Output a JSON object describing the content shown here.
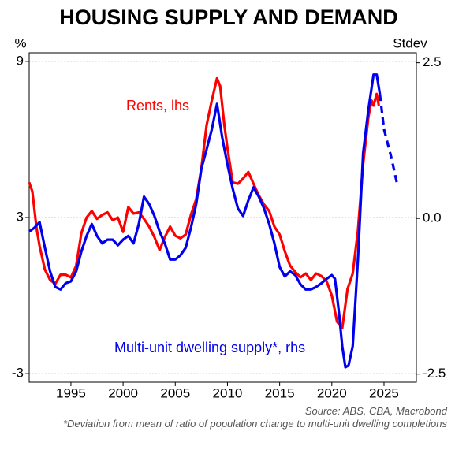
{
  "chart_data": {
    "type": "line",
    "title": "HOUSING SUPPLY AND DEMAND",
    "y_label": "%",
    "y2_label": "Stdev",
    "source": "Source: ABS, CBA, Macrobond",
    "footnote": "*Deviation from mean of ratio of population change to multi-unit dwelling completions",
    "xlim": [
      1991,
      2028.1
    ],
    "xticks": [
      1995,
      2000,
      2005,
      2010,
      2015,
      2020,
      2025
    ],
    "ylim": [
      -3.33,
      9.33
    ],
    "yticks": [
      9,
      3,
      -3
    ],
    "y2lim": [
      -2.63,
      2.66
    ],
    "y2ticks": [
      2.5,
      {
        "value": 0,
        "label": "0.0"
      },
      -2.5
    ],
    "grid": true,
    "annotations": [
      {
        "text": "Rents, lhs",
        "color": "#ff0000"
      },
      {
        "text": "Multi-unit dwelling supply*, rhs",
        "color": "#0000ee"
      }
    ],
    "series": [
      {
        "color": "#ff0000",
        "axis": "y",
        "dash": false,
        "x": [
          1991.0,
          1991.3,
          1991.7,
          1992.0,
          1992.5,
          1993.0,
          1993.5,
          1994.0,
          1994.5,
          1995.0,
          1995.5,
          1996.0,
          1996.5,
          1997.0,
          1997.5,
          1998.0,
          1998.5,
          1999.0,
          1999.5,
          2000.0,
          2000.5,
          2001.0,
          2001.5,
          2002.0,
          2002.5,
          2003.0,
          2003.5,
          2004.0,
          2004.5,
          2005.0,
          2005.5,
          2006.0,
          2006.5,
          2007.0,
          2007.5,
          2008.0,
          2008.5,
          2009.0,
          2009.3,
          2009.7,
          2010.0,
          2010.5,
          2011.0,
          2011.5,
          2012.0,
          2012.5,
          2013.0,
          2013.5,
          2014.0,
          2014.5,
          2015.0,
          2015.5,
          2016.0,
          2016.5,
          2017.0,
          2017.5,
          2018.0,
          2018.5,
          2019.0,
          2019.5,
          2020.0,
          2020.5,
          2021.0,
          2021.5,
          2022.0,
          2022.5,
          2023.0,
          2023.5,
          2023.8,
          2024.0,
          2024.3,
          2024.5
        ],
        "values": [
          4.35,
          4.0,
          2.6,
          1.9,
          1.0,
          0.6,
          0.45,
          0.8,
          0.8,
          0.7,
          1.15,
          2.4,
          3.0,
          3.25,
          2.95,
          3.1,
          3.2,
          2.9,
          3.0,
          2.45,
          3.4,
          3.15,
          3.2,
          2.95,
          2.65,
          2.25,
          1.75,
          2.25,
          2.65,
          2.3,
          2.2,
          2.35,
          3.1,
          3.7,
          4.9,
          6.55,
          7.5,
          8.35,
          8.05,
          6.55,
          5.65,
          4.35,
          4.3,
          4.5,
          4.75,
          4.3,
          3.85,
          3.5,
          3.25,
          2.65,
          2.35,
          1.7,
          1.15,
          0.9,
          0.7,
          0.85,
          0.6,
          0.85,
          0.75,
          0.55,
          0.0,
          -1.0,
          -1.25,
          0.25,
          0.85,
          2.5,
          5.05,
          6.85,
          7.5,
          7.3,
          7.75,
          7.3
        ]
      },
      {
        "color": "#0000ee",
        "axis": "y2",
        "dash": false,
        "x": [
          1991.0,
          1991.5,
          1992.0,
          1992.5,
          1993.0,
          1993.5,
          1994.0,
          1994.5,
          1995.0,
          1995.5,
          1996.0,
          1996.5,
          1997.0,
          1997.5,
          1998.0,
          1998.5,
          1999.0,
          1999.5,
          2000.0,
          2000.5,
          2001.0,
          2001.5,
          2002.0,
          2002.5,
          2003.0,
          2003.5,
          2004.0,
          2004.5,
          2005.0,
          2005.5,
          2006.0,
          2006.5,
          2007.0,
          2007.5,
          2008.0,
          2008.5,
          2009.0,
          2009.5,
          2010.0,
          2010.5,
          2011.0,
          2011.5,
          2012.0,
          2012.5,
          2013.0,
          2013.5,
          2014.0,
          2014.5,
          2015.0,
          2015.5,
          2016.0,
          2016.5,
          2017.0,
          2017.5,
          2018.0,
          2018.5,
          2019.0,
          2019.5,
          2020.0,
          2020.3,
          2020.7,
          2021.0,
          2021.3,
          2021.6,
          2022.0,
          2022.5,
          2023.0,
          2023.5,
          2024.0,
          2024.3,
          2024.6
        ],
        "values": [
          -0.21,
          -0.15,
          -0.06,
          -0.47,
          -0.85,
          -1.1,
          -1.14,
          -1.04,
          -1.01,
          -0.85,
          -0.53,
          -0.28,
          -0.09,
          -0.28,
          -0.4,
          -0.34,
          -0.34,
          -0.43,
          -0.34,
          -0.28,
          -0.4,
          -0.09,
          0.35,
          0.23,
          0.04,
          -0.21,
          -0.4,
          -0.66,
          -0.66,
          -0.59,
          -0.47,
          -0.15,
          0.23,
          0.8,
          1.11,
          1.43,
          1.84,
          1.3,
          0.86,
          0.48,
          0.16,
          0.04,
          0.29,
          0.5,
          0.35,
          0.16,
          -0.09,
          -0.4,
          -0.78,
          -0.93,
          -0.85,
          -0.91,
          -1.06,
          -1.14,
          -1.14,
          -1.1,
          -1.04,
          -0.97,
          -0.91,
          -0.97,
          -1.54,
          -2.05,
          -2.39,
          -2.36,
          -2.05,
          -0.66,
          1.05,
          1.74,
          2.31,
          2.31,
          2.0
        ]
      },
      {
        "color": "#0000ee",
        "axis": "y2",
        "dash": true,
        "x": [
          2024.6,
          2025.0,
          2025.7,
          2026.3
        ],
        "values": [
          2.0,
          1.43,
          0.98,
          0.52
        ]
      }
    ]
  }
}
